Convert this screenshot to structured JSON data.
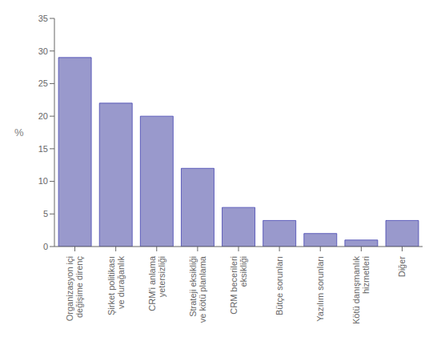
{
  "chart_data": {
    "type": "bar",
    "ylabel": "%",
    "categories": [
      "Organizasyon içi\ndeğişime direnç",
      "Şirket politikası\nve durağanlık",
      "CRM'i anlama\nyetersizliği",
      "Strateji eksikliği\nve kötü planlama",
      "CRM becerileri\neksikliği",
      "Bütçe sorunları",
      "Yazılım sorunları",
      "Kötü danışmanlık\nhizmetleri",
      "Diğer"
    ],
    "values": [
      29,
      22,
      20,
      12,
      6,
      4,
      2,
      1,
      4
    ],
    "color": "#9999cc",
    "ylim": [
      0,
      35
    ],
    "yticks": [
      0,
      5,
      10,
      15,
      20,
      25,
      30,
      35
    ],
    "grid": false
  }
}
